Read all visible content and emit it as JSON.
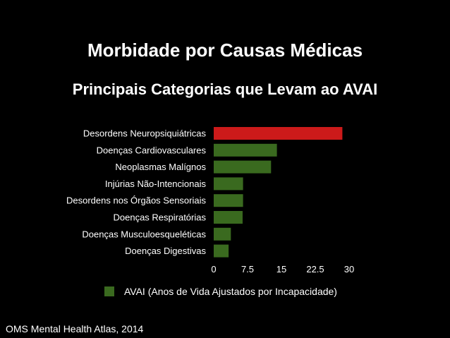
{
  "slide": {
    "title": "Morbidade por Causas Médicas",
    "subtitle": "Principais Categorias que Levam ao AVAI",
    "source": "OMS Mental Health Atlas, 2014"
  },
  "colors": {
    "background": "#000000",
    "highlight_bar": "#cc1a1a",
    "default_bar": "#3a6a1f",
    "text": "#ffffff"
  },
  "chart_data": {
    "type": "bar",
    "orientation": "horizontal",
    "categories": [
      "Desordens Neuropsiquiátricas",
      "Doenças Cardiovasculares",
      "Neoplasmas Malígnos",
      "Injúrias Não-Intencionais",
      "Desordens nos Órgãos Sensoriais",
      "Doenças Respiratórias",
      "Doenças Musculoesqueléticas",
      "Doenças Digestivas"
    ],
    "series": [
      {
        "name": "AVAI (Anos de Vida Ajustados por Incapacidade)",
        "values": [
          28.5,
          14.0,
          12.7,
          6.5,
          6.5,
          6.4,
          3.8,
          3.3
        ]
      }
    ],
    "highlight_index": 0,
    "xlim": [
      0,
      30
    ],
    "xticks": [
      "0",
      "7.5",
      "15",
      "22.5",
      "30"
    ],
    "xtick_values": [
      0,
      7.5,
      15,
      22.5,
      30
    ],
    "grid": false,
    "legend_position": "bottom"
  }
}
